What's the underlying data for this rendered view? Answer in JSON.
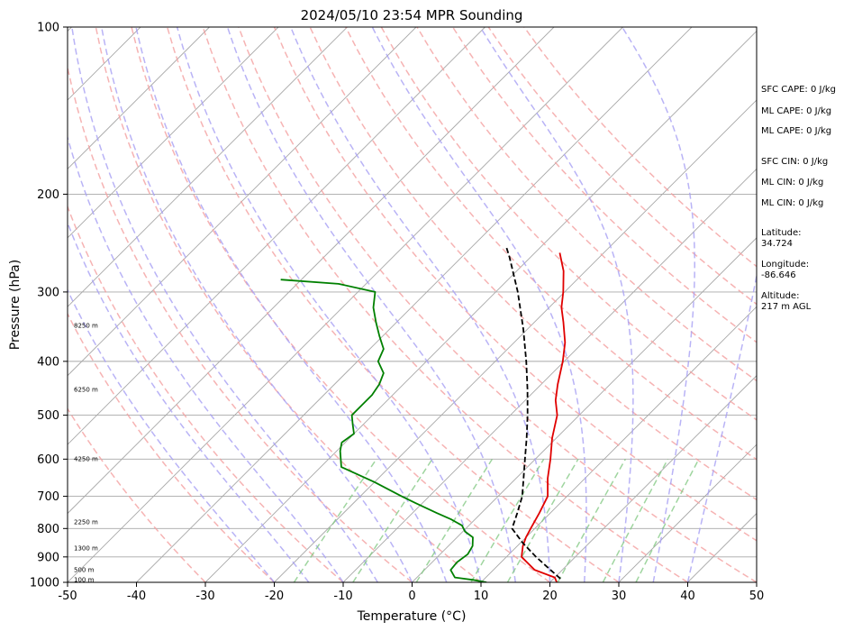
{
  "chart_data": {
    "type": "line",
    "title": "2024/05/10 23:54 MPR Sounding",
    "xlabel": "Temperature (°C)",
    "ylabel": "Pressure (hPa)",
    "xlim": [
      -50,
      50
    ],
    "ylim": [
      1000,
      100
    ],
    "y_scale": "log",
    "skew": "skew-T log-p",
    "grid": true,
    "x_ticks": [
      -50,
      -40,
      -30,
      -20,
      -10,
      0,
      10,
      20,
      30,
      40,
      50
    ],
    "y_ticks": [
      1000,
      900,
      800,
      700,
      600,
      500,
      400,
      300,
      200,
      100
    ],
    "series": [
      {
        "color": "#e00000",
        "points": [
          [
            1000,
            21
          ],
          [
            980,
            20
          ],
          [
            950,
            16
          ],
          [
            900,
            12.2
          ],
          [
            860,
            10.8
          ],
          [
            830,
            10
          ],
          [
            800,
            9.4
          ],
          [
            750,
            8.4
          ],
          [
            700,
            7.2
          ],
          [
            650,
            4.6
          ],
          [
            600,
            2.2
          ],
          [
            550,
            -0.6
          ],
          [
            500,
            -3.2
          ],
          [
            470,
            -5.6
          ],
          [
            440,
            -7.6
          ],
          [
            400,
            -10.2
          ],
          [
            370,
            -12.6
          ],
          [
            340,
            -15.8
          ],
          [
            320,
            -18.2
          ],
          [
            300,
            -20.2
          ],
          [
            275,
            -23.2
          ],
          [
            255,
            -26.4
          ]
        ]
      },
      {
        "color": "#008000",
        "points": [
          [
            1000,
            10.8
          ],
          [
            990,
            8.5
          ],
          [
            980,
            5.5
          ],
          [
            950,
            3.8
          ],
          [
            920,
            3.6
          ],
          [
            890,
            4
          ],
          [
            860,
            3.5
          ],
          [
            830,
            2.3
          ],
          [
            810,
            0.3
          ],
          [
            790,
            -1
          ],
          [
            770,
            -3.5
          ],
          [
            750,
            -6.5
          ],
          [
            720,
            -11
          ],
          [
            700,
            -14
          ],
          [
            660,
            -20
          ],
          [
            620,
            -27
          ],
          [
            580,
            -29.5
          ],
          [
            560,
            -30.5
          ],
          [
            540,
            -30
          ],
          [
            520,
            -31.5
          ],
          [
            500,
            -33
          ],
          [
            480,
            -33
          ],
          [
            460,
            -33
          ],
          [
            440,
            -33.5
          ],
          [
            420,
            -34.5
          ],
          [
            400,
            -37
          ],
          [
            380,
            -38
          ],
          [
            360,
            -40.5
          ],
          [
            340,
            -43
          ],
          [
            320,
            -45.5
          ],
          [
            300,
            -47.5
          ],
          [
            290,
            -54
          ],
          [
            285,
            -63
          ]
        ]
      },
      {
        "color": "#000000",
        "style": "dashed",
        "points": [
          [
            985,
            21
          ],
          [
            950,
            18.3
          ],
          [
            900,
            14.3
          ],
          [
            850,
            10.4
          ],
          [
            800,
            6.7
          ],
          [
            750,
            5.2
          ],
          [
            700,
            3.5
          ],
          [
            650,
            1.1
          ],
          [
            600,
            -1.5
          ],
          [
            550,
            -4.3
          ],
          [
            500,
            -7.5
          ],
          [
            450,
            -11.2
          ],
          [
            400,
            -15.5
          ],
          [
            350,
            -20.6
          ],
          [
            300,
            -26.8
          ],
          [
            260,
            -33
          ],
          [
            250,
            -34.8
          ]
        ]
      }
    ],
    "height_labels": [
      "100 m",
      "500 m",
      "1300 m",
      "2250 m",
      "4250 m",
      "6250 m",
      "8250 m"
    ],
    "height_label_pressures": [
      990,
      950,
      870,
      780,
      600,
      450,
      345
    ],
    "dry_adiabats_theta_c": [
      -30,
      -20,
      -10,
      0,
      10,
      20,
      30,
      40,
      50,
      60,
      70,
      80,
      90,
      100,
      110,
      120,
      130
    ],
    "moist_adiabats_t1000_c": [
      -20,
      -15,
      -10,
      -5,
      0,
      5,
      10,
      15,
      20,
      25,
      30,
      35,
      40
    ],
    "mixing_ratios_gkg": [
      1,
      2,
      4,
      7,
      10,
      16,
      24,
      32
    ],
    "colors": {
      "temperature": "#e00000",
      "dewpoint": "#008000",
      "parcel": "#000000",
      "dry_adiabat": "#f4a0a0",
      "moist_adiabat": "#a7a0f4",
      "mixing_ratio": "#7fc77f",
      "isotherm": "#a8a8a8",
      "isobar": "#a8a8a8"
    }
  },
  "side_panel": {
    "sfc_cape": "SFC CAPE: 0 J/kg",
    "ml_cape_1": "ML CAPE: 0 J/kg",
    "ml_cape_2": "ML CAPE: 0 J/kg",
    "sfc_cin": "SFC CIN: 0 J/kg",
    "ml_cin_1": "ML CIN: 0 J/kg",
    "ml_cin_2": "ML CIN: 0 J/kg",
    "latitude_label": "Latitude:",
    "latitude_value": "34.724",
    "longitude_label": "Longitude:",
    "longitude_value": "-86.646",
    "altitude_label": "Altitude:",
    "altitude_value": "217 m AGL"
  }
}
